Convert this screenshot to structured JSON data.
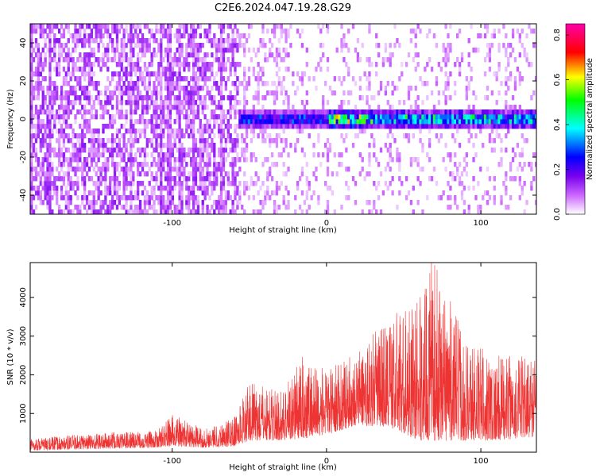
{
  "figure": {
    "title": "C2E6.2024.047.19.28.G29"
  },
  "chart_data": [
    {
      "type": "heatmap",
      "xlabel": "Height of straight line (km)",
      "ylabel": "Frequency (Hz)",
      "xlim": [
        -192,
        136
      ],
      "ylim": [
        -50,
        50
      ],
      "x_ticks": [
        -100,
        0,
        100
      ],
      "y_ticks": [
        -40,
        -20,
        0,
        20,
        40
      ],
      "colorbar": {
        "label": "Normalized spectral amplitude",
        "range": [
          0,
          0.85
        ],
        "ticks": [
          0.0,
          0.2,
          0.4,
          0.6,
          0.8
        ],
        "colormap": [
          "#ffffff",
          "#cc66ff",
          "#7700ee",
          "#0000ff",
          "#00ffff",
          "#00ff00",
          "#ffff00",
          "#ff0000",
          "#ff00aa"
        ]
      },
      "noise_regions": [
        {
          "x_range": [
            -192,
            -58
          ],
          "level": 0.18
        },
        {
          "x_range": [
            -58,
            -25
          ],
          "level": 0.09
        },
        {
          "x_range": [
            -25,
            136
          ],
          "level": 0.05
        }
      ],
      "signal_band": {
        "x_range": [
          -58,
          136
        ],
        "center_frequency_hz": 0,
        "half_width_hz": 4,
        "peak_amplitude": 0.82
      }
    },
    {
      "type": "line",
      "xlabel": "Height of straight line (km)",
      "ylabel": "SNR (10 * v/v)",
      "xlim": [
        -192,
        136
      ],
      "ylim": [
        0,
        4900
      ],
      "x_ticks": [
        -100,
        0,
        100
      ],
      "y_ticks": [
        1000,
        2000,
        3000,
        4000
      ],
      "line_color": "#ee3333",
      "envelope": [
        {
          "x": -192,
          "low": 50,
          "high": 350
        },
        {
          "x": -150,
          "low": 80,
          "high": 500
        },
        {
          "x": -110,
          "low": 120,
          "high": 550
        },
        {
          "x": -100,
          "low": 150,
          "high": 1000
        },
        {
          "x": -80,
          "low": 120,
          "high": 600
        },
        {
          "x": -60,
          "low": 150,
          "high": 900
        },
        {
          "x": -50,
          "low": 300,
          "high": 1800
        },
        {
          "x": -30,
          "low": 300,
          "high": 1600
        },
        {
          "x": -15,
          "low": 350,
          "high": 2500
        },
        {
          "x": 0,
          "low": 450,
          "high": 2100
        },
        {
          "x": 20,
          "low": 700,
          "high": 2600
        },
        {
          "x": 40,
          "low": 650,
          "high": 3500
        },
        {
          "x": 60,
          "low": 300,
          "high": 4000
        },
        {
          "x": 70,
          "low": 300,
          "high": 4900
        },
        {
          "x": 90,
          "low": 300,
          "high": 3000
        },
        {
          "x": 110,
          "low": 300,
          "high": 2500
        },
        {
          "x": 136,
          "low": 400,
          "high": 2500
        }
      ],
      "peak": {
        "x": 68,
        "y": 4900
      }
    }
  ]
}
